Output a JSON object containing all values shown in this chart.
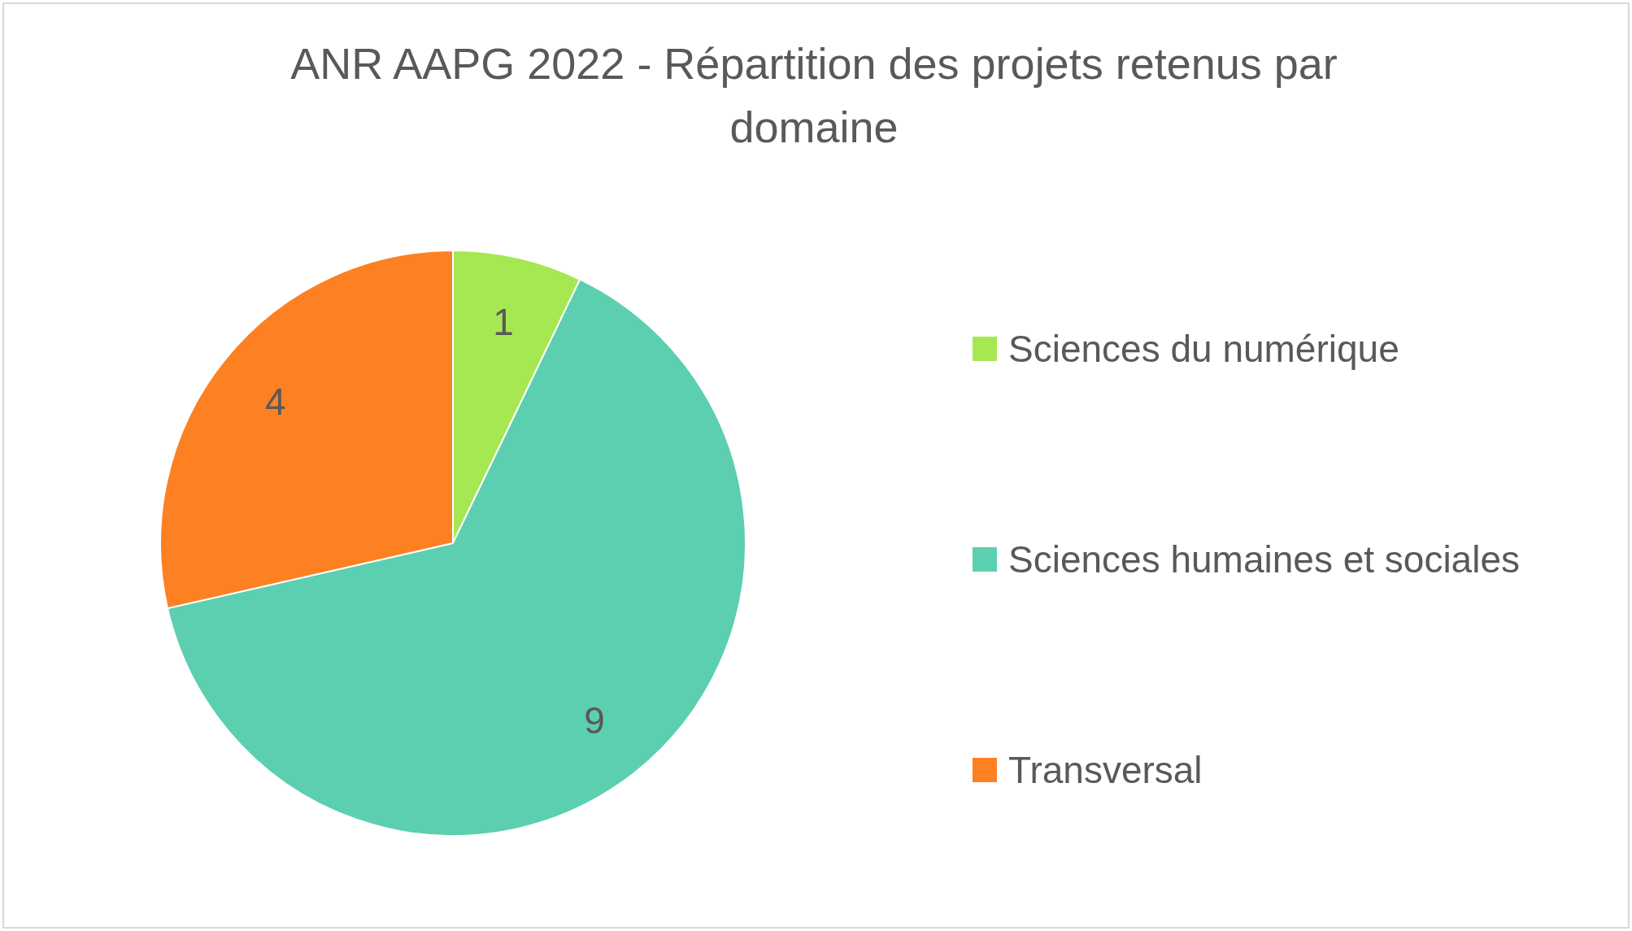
{
  "chart_data": {
    "type": "pie",
    "title": "ANR AAPG 2022 - Répartition des projets retenus par domaine",
    "categories": [
      "Sciences du numérique",
      "Sciences humaines et sociales",
      "Transversal"
    ],
    "values": [
      1,
      9,
      4
    ],
    "colors": [
      "#a6e851",
      "#5ccfb0",
      "#fd8023"
    ],
    "data_labels": true,
    "legend": "right"
  }
}
